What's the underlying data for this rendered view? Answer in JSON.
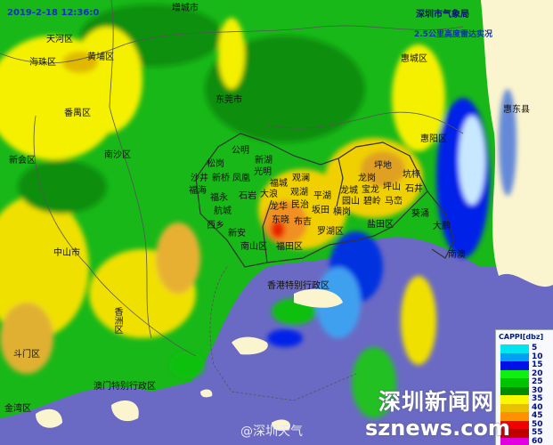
{
  "header": {
    "timestamp": "2019-2-18 12:36:0",
    "agency": "深圳市气象局",
    "subtitle": "2.5公里高度雷达实况"
  },
  "places": [
    {
      "name": "增城市"
    },
    {
      "name": "天河区"
    },
    {
      "name": "黄埔区"
    },
    {
      "name": "海珠区"
    },
    {
      "name": "番禺区"
    },
    {
      "name": "东莞市"
    },
    {
      "name": "南沙区"
    },
    {
      "name": "新会区"
    },
    {
      "name": "中山市"
    },
    {
      "name": "香洲区"
    },
    {
      "name": "斗门区"
    },
    {
      "name": "澳门特别行政区"
    },
    {
      "name": "金湾区"
    },
    {
      "name": "惠城区"
    },
    {
      "name": "惠东县"
    },
    {
      "name": "惠阳区"
    },
    {
      "name": "公明"
    },
    {
      "name": "新湖"
    },
    {
      "name": "松岗"
    },
    {
      "name": "沙井"
    },
    {
      "name": "新桥"
    },
    {
      "name": "凤凰"
    },
    {
      "name": "光明"
    },
    {
      "name": "福海"
    },
    {
      "name": "福永"
    },
    {
      "name": "石岩"
    },
    {
      "name": "航城"
    },
    {
      "name": "西乡"
    },
    {
      "name": "新安"
    },
    {
      "name": "南山区"
    },
    {
      "name": "福田区"
    },
    {
      "name": "罗湖区"
    },
    {
      "name": "福城"
    },
    {
      "name": "观澜"
    },
    {
      "name": "观湖"
    },
    {
      "name": "大浪"
    },
    {
      "name": "龙华"
    },
    {
      "name": "民治"
    },
    {
      "name": "平湖"
    },
    {
      "name": "坂田"
    },
    {
      "name": "布吉"
    },
    {
      "name": "东晓"
    },
    {
      "name": "横岗"
    },
    {
      "name": "龙城"
    },
    {
      "name": "园山"
    },
    {
      "name": "龙岗"
    },
    {
      "name": "宝龙"
    },
    {
      "name": "坪地"
    },
    {
      "name": "坑梓"
    },
    {
      "name": "坪山"
    },
    {
      "name": "碧岭"
    },
    {
      "name": "石井"
    },
    {
      "name": "马峦"
    },
    {
      "name": "盐田区"
    },
    {
      "name": "葵涌"
    },
    {
      "name": "大鹏"
    },
    {
      "name": "南澳"
    },
    {
      "name": "香港特别行政区"
    }
  ],
  "legend": {
    "title": "CAPPI[dbz]",
    "levels": [
      {
        "value": "5",
        "color": "#00e4ee"
      },
      {
        "value": "10",
        "color": "#00a0f2"
      },
      {
        "value": "15",
        "color": "#0010e8"
      },
      {
        "value": "20",
        "color": "#10f010"
      },
      {
        "value": "25",
        "color": "#00c400"
      },
      {
        "value": "30",
        "color": "#008c00"
      },
      {
        "value": "35",
        "color": "#f8f800"
      },
      {
        "value": "40",
        "color": "#e8c000"
      },
      {
        "value": "45",
        "color": "#ff9000"
      },
      {
        "value": "50",
        "color": "#f00000"
      },
      {
        "value": "55",
        "color": "#c00000"
      },
      {
        "value": "60",
        "color": "#e000e0"
      }
    ]
  },
  "watermarks": {
    "site_cn": "深圳新闻网",
    "site": "sznews.com",
    "weibo": "@深圳天气"
  },
  "colors": {
    "sea": "#6a6ac4",
    "land_no_echo": "#fbf5cf",
    "border": "#333333"
  }
}
